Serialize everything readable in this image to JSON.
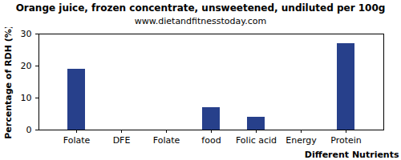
{
  "chart_data": {
    "type": "bar",
    "title": "Orange juice, frozen concentrate, unsweetened, undiluted per 100g",
    "subtitle": "www.dietandfitnesstoday.com",
    "x_label": "Different Nutrients",
    "y_label": "Percentage of RDH (%)",
    "categories": [
      "Folate",
      "DFE",
      "Folate",
      "food",
      "Folic acid",
      "Energy",
      "Protein"
    ],
    "values": [
      19,
      0,
      0,
      7,
      4,
      0,
      27
    ],
    "color": "#27408b",
    "ylim": [
      0,
      30
    ],
    "yticks": [
      0,
      10,
      20,
      30
    ],
    "grid": false
  }
}
